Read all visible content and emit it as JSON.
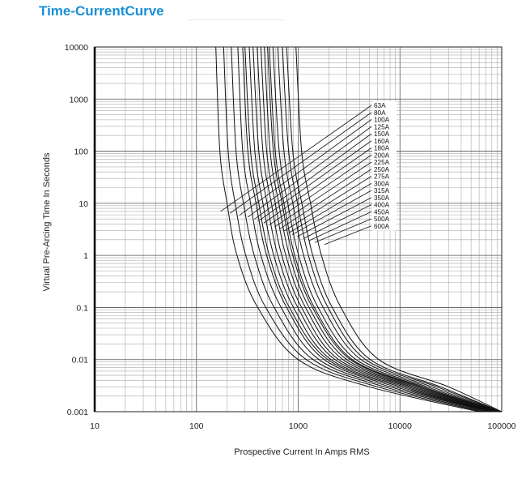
{
  "header": {
    "title": "Time-CurrentCurve"
  },
  "chart_data": {
    "type": "line",
    "title": "Time-CurrentCurve",
    "xlabel": "Prospective Current In Amps RMS",
    "ylabel": "Virtual Pre-Arcing Time In Seconds",
    "xscale": "log",
    "yscale": "log",
    "xlim": [
      10,
      100000
    ],
    "ylim": [
      0.001,
      10000
    ],
    "xticks": [
      "10",
      "100",
      "1000",
      "10000",
      "100000"
    ],
    "yticks": [
      "0.001",
      "0.01",
      "0.1",
      "1",
      "10",
      "100",
      "1000",
      "10000"
    ],
    "grid": true,
    "legend_style": "callout labels at right of curves",
    "series": [
      {
        "name": "63A",
        "values": [
          [
            155,
            10000
          ],
          [
            170,
            100
          ],
          [
            200,
            10
          ],
          [
            250,
            1
          ],
          [
            400,
            0.1
          ],
          [
            1000,
            0.01
          ],
          [
            5000,
            0.003
          ],
          [
            60000,
            0.001
          ]
        ]
      },
      {
        "name": "80A",
        "values": [
          [
            185,
            10000
          ],
          [
            205,
            100
          ],
          [
            240,
            10
          ],
          [
            305,
            1
          ],
          [
            480,
            0.1
          ],
          [
            1200,
            0.01
          ],
          [
            6000,
            0.003
          ],
          [
            65000,
            0.001
          ]
        ]
      },
      {
        "name": "100A",
        "values": [
          [
            220,
            10000
          ],
          [
            245,
            100
          ],
          [
            290,
            10
          ],
          [
            370,
            1
          ],
          [
            580,
            0.1
          ],
          [
            1400,
            0.01
          ],
          [
            7000,
            0.003
          ],
          [
            70000,
            0.001
          ]
        ]
      },
      {
        "name": "125A",
        "values": [
          [
            255,
            10000
          ],
          [
            285,
            100
          ],
          [
            340,
            10
          ],
          [
            430,
            1
          ],
          [
            680,
            0.1
          ],
          [
            1600,
            0.01
          ],
          [
            8000,
            0.003
          ],
          [
            75000,
            0.001
          ]
        ]
      },
      {
        "name": "150A",
        "values": [
          [
            285,
            10000
          ],
          [
            320,
            100
          ],
          [
            385,
            10
          ],
          [
            490,
            1
          ],
          [
            770,
            0.1
          ],
          [
            1800,
            0.01
          ],
          [
            9000,
            0.003
          ],
          [
            78000,
            0.001
          ]
        ]
      },
      {
        "name": "160A",
        "values": [
          [
            300,
            10000
          ],
          [
            340,
            100
          ],
          [
            410,
            10
          ],
          [
            520,
            1
          ],
          [
            820,
            0.1
          ],
          [
            1950,
            0.01
          ],
          [
            10000,
            0.003
          ],
          [
            80000,
            0.001
          ]
        ]
      },
      {
        "name": "180A",
        "values": [
          [
            330,
            10000
          ],
          [
            375,
            100
          ],
          [
            450,
            10
          ],
          [
            575,
            1
          ],
          [
            900,
            0.1
          ],
          [
            2100,
            0.01
          ],
          [
            11000,
            0.003
          ],
          [
            82000,
            0.001
          ]
        ]
      },
      {
        "name": "200A",
        "values": [
          [
            360,
            10000
          ],
          [
            410,
            100
          ],
          [
            495,
            10
          ],
          [
            630,
            1
          ],
          [
            990,
            0.1
          ],
          [
            2300,
            0.01
          ],
          [
            12000,
            0.003
          ],
          [
            84000,
            0.001
          ]
        ]
      },
      {
        "name": "225A",
        "values": [
          [
            395,
            10000
          ],
          [
            450,
            100
          ],
          [
            545,
            10
          ],
          [
            690,
            1
          ],
          [
            1080,
            0.1
          ],
          [
            2500,
            0.01
          ],
          [
            13000,
            0.003
          ],
          [
            86000,
            0.001
          ]
        ]
      },
      {
        "name": "250A",
        "values": [
          [
            430,
            10000
          ],
          [
            490,
            100
          ],
          [
            595,
            10
          ],
          [
            755,
            1
          ],
          [
            1180,
            0.1
          ],
          [
            2750,
            0.01
          ],
          [
            14000,
            0.003
          ],
          [
            88000,
            0.001
          ]
        ]
      },
      {
        "name": "275A",
        "values": [
          [
            465,
            10000
          ],
          [
            530,
            100
          ],
          [
            645,
            10
          ],
          [
            820,
            1
          ],
          [
            1280,
            0.1
          ],
          [
            3000,
            0.01
          ],
          [
            15000,
            0.003
          ],
          [
            90000,
            0.001
          ]
        ]
      },
      {
        "name": "300A",
        "values": [
          [
            500,
            10000
          ],
          [
            570,
            100
          ],
          [
            695,
            10
          ],
          [
            885,
            1
          ],
          [
            1380,
            0.1
          ],
          [
            3250,
            0.01
          ],
          [
            16000,
            0.003
          ],
          [
            92000,
            0.001
          ]
        ]
      },
      {
        "name": "315A",
        "values": [
          [
            520,
            10000
          ],
          [
            595,
            100
          ],
          [
            725,
            10
          ],
          [
            925,
            1
          ],
          [
            1440,
            0.1
          ],
          [
            3400,
            0.01
          ],
          [
            17000,
            0.003
          ],
          [
            93000,
            0.001
          ]
        ]
      },
      {
        "name": "350A",
        "values": [
          [
            565,
            10000
          ],
          [
            650,
            100
          ],
          [
            790,
            10
          ],
          [
            1010,
            1
          ],
          [
            1570,
            0.1
          ],
          [
            3700,
            0.01
          ],
          [
            18500,
            0.003
          ],
          [
            94000,
            0.001
          ]
        ]
      },
      {
        "name": "400A",
        "values": [
          [
            630,
            10000
          ],
          [
            725,
            100
          ],
          [
            885,
            10
          ],
          [
            1130,
            1
          ],
          [
            1760,
            0.1
          ],
          [
            4150,
            0.01
          ],
          [
            20500,
            0.003
          ],
          [
            95500,
            0.001
          ]
        ]
      },
      {
        "name": "450A",
        "values": [
          [
            700,
            10000
          ],
          [
            805,
            100
          ],
          [
            985,
            10
          ],
          [
            1260,
            1
          ],
          [
            1960,
            0.1
          ],
          [
            4600,
            0.01
          ],
          [
            23000,
            0.003
          ],
          [
            97000,
            0.001
          ]
        ]
      },
      {
        "name": "500A",
        "values": [
          [
            770,
            10000
          ],
          [
            885,
            100
          ],
          [
            1085,
            10
          ],
          [
            1390,
            1
          ],
          [
            2160,
            0.1
          ],
          [
            5100,
            0.01
          ],
          [
            25000,
            0.003
          ],
          [
            98500,
            0.001
          ]
        ]
      },
      {
        "name": "600A",
        "values": [
          [
            950,
            10000
          ],
          [
            1080,
            100
          ],
          [
            1320,
            10
          ],
          [
            1690,
            1
          ],
          [
            2630,
            0.1
          ],
          [
            6200,
            0.01
          ],
          [
            30000,
            0.003
          ],
          [
            100000,
            0.001
          ]
        ]
      }
    ]
  }
}
